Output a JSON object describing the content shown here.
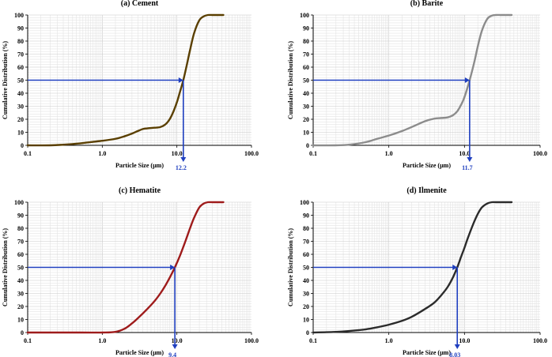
{
  "chart_data": [
    {
      "type": "line",
      "title": "(a) Cement",
      "xlabel": "Particle Size (µm)",
      "ylabel": "Cumulative Distribution (%)",
      "xscale": "log",
      "xlim": [
        0.1,
        100
      ],
      "ylim": [
        0,
        100
      ],
      "xticks": [
        "0.1",
        "1.0",
        "10.0",
        "100.0"
      ],
      "yticks": [
        "0",
        "10",
        "20",
        "30",
        "40",
        "50",
        "60",
        "70",
        "80",
        "90",
        "100"
      ],
      "grid": true,
      "line_color": "#5a3f00",
      "series": [
        {
          "name": "Cement",
          "x": [
            0.1,
            0.2,
            0.3,
            0.5,
            0.7,
            1,
            1.5,
            2,
            2.5,
            3,
            3.5,
            4,
            5,
            6,
            7,
            8,
            9,
            10,
            11,
            12.2,
            13.5,
            15,
            17,
            20,
            23,
            26,
            30,
            35,
            42
          ],
          "y": [
            0,
            0,
            0.5,
            1.5,
            2.5,
            3.5,
            5,
            7,
            9,
            11,
            12.5,
            13,
            13.5,
            14,
            16,
            20,
            26,
            33,
            41,
            50,
            61,
            73,
            86,
            96,
            99,
            100,
            100,
            100,
            100
          ]
        }
      ],
      "d50": {
        "value": 12.2,
        "label": "12.2",
        "y": 50
      }
    },
    {
      "type": "line",
      "title": "(b) Barite",
      "xlabel": "Particle Size (µm)",
      "ylabel": "Cumulative Distribution (%)",
      "xscale": "log",
      "xlim": [
        0.1,
        100
      ],
      "ylim": [
        0,
        100
      ],
      "xticks": [
        "0.1",
        "1.0",
        "10.0",
        "100.0"
      ],
      "yticks": [
        "0",
        "10",
        "20",
        "30",
        "40",
        "50",
        "60",
        "70",
        "80",
        "90",
        "100"
      ],
      "grid": true,
      "line_color": "#8c8c8c",
      "series": [
        {
          "name": "Barite",
          "x": [
            0.1,
            0.2,
            0.3,
            0.5,
            0.7,
            1,
            1.5,
            2,
            3,
            4,
            5,
            6,
            7,
            8,
            9,
            10,
            11.7,
            13.5,
            15,
            17,
            20,
            23,
            26,
            30,
            35,
            42
          ],
          "y": [
            0,
            0,
            0.5,
            2.5,
            5,
            7.5,
            11,
            14,
            18.5,
            20.5,
            21,
            21.5,
            23,
            26,
            31,
            37,
            50,
            64,
            76,
            88,
            97,
            99.5,
            100,
            100,
            100,
            100
          ]
        }
      ],
      "d50": {
        "value": 11.7,
        "label": "11.7",
        "y": 50
      }
    },
    {
      "type": "line",
      "title": "(c) Hematite",
      "xlabel": "Particle Size (µm)",
      "ylabel": "Cumulative Distribution (%)",
      "xscale": "log",
      "xlim": [
        0.1,
        100
      ],
      "ylim": [
        0,
        100
      ],
      "xticks": [
        "0.1",
        "1.0",
        "10.0",
        "100.0"
      ],
      "yticks": [
        "0",
        "10",
        "20",
        "30",
        "40",
        "50",
        "60",
        "70",
        "80",
        "90",
        "100"
      ],
      "grid": true,
      "line_color": "#9e1b1b",
      "series": [
        {
          "name": "Hematite",
          "x": [
            0.1,
            0.5,
            1,
            1.5,
            2,
            2.5,
            3,
            4,
            5,
            6,
            7,
            8,
            9.4,
            11,
            13,
            15,
            17,
            20,
            23,
            26,
            30,
            35,
            42
          ],
          "y": [
            0,
            0,
            0,
            0.5,
            3,
            7,
            11,
            18,
            24,
            30,
            36,
            42,
            50,
            59,
            70,
            80,
            88,
            96,
            99,
            100,
            100,
            100,
            100
          ]
        }
      ],
      "d50": {
        "value": 9.4,
        "label": "9.4",
        "y": 50
      }
    },
    {
      "type": "line",
      "title": "(d) Ilmenite",
      "xlabel": "Particle Size (µm)",
      "ylabel": "Cumulative Distribution (%)",
      "xscale": "log",
      "xlim": [
        0.1,
        100
      ],
      "ylim": [
        0,
        100
      ],
      "xticks": [
        "0.1",
        "1.0",
        "10.0",
        "100.0"
      ],
      "yticks": [
        "0",
        "10",
        "20",
        "30",
        "40",
        "50",
        "60",
        "70",
        "80",
        "90",
        "100"
      ],
      "grid": true,
      "line_color": "#2b2b2b",
      "series": [
        {
          "name": "Ilmenite",
          "x": [
            0.1,
            0.2,
            0.3,
            0.5,
            0.7,
            1,
            1.5,
            2,
            3,
            4,
            5,
            6,
            7,
            8.03,
            9,
            10,
            11,
            13,
            15,
            17,
            20,
            23,
            26,
            30,
            35,
            42
          ],
          "y": [
            0,
            0.5,
            1.2,
            2.5,
            4,
            6,
            9,
            12,
            18,
            23,
            29,
            35,
            42,
            50,
            58,
            65,
            72,
            83,
            91,
            96,
            99,
            100,
            100,
            100,
            100,
            100
          ]
        }
      ],
      "d50": {
        "value": 8.03,
        "label": "8.03",
        "y": 50
      }
    }
  ],
  "colors": {
    "marker": "#1f3fbf",
    "grid_minor": "#e4e4e4",
    "grid_major": "#c8c8c8",
    "axis": "#000000"
  }
}
